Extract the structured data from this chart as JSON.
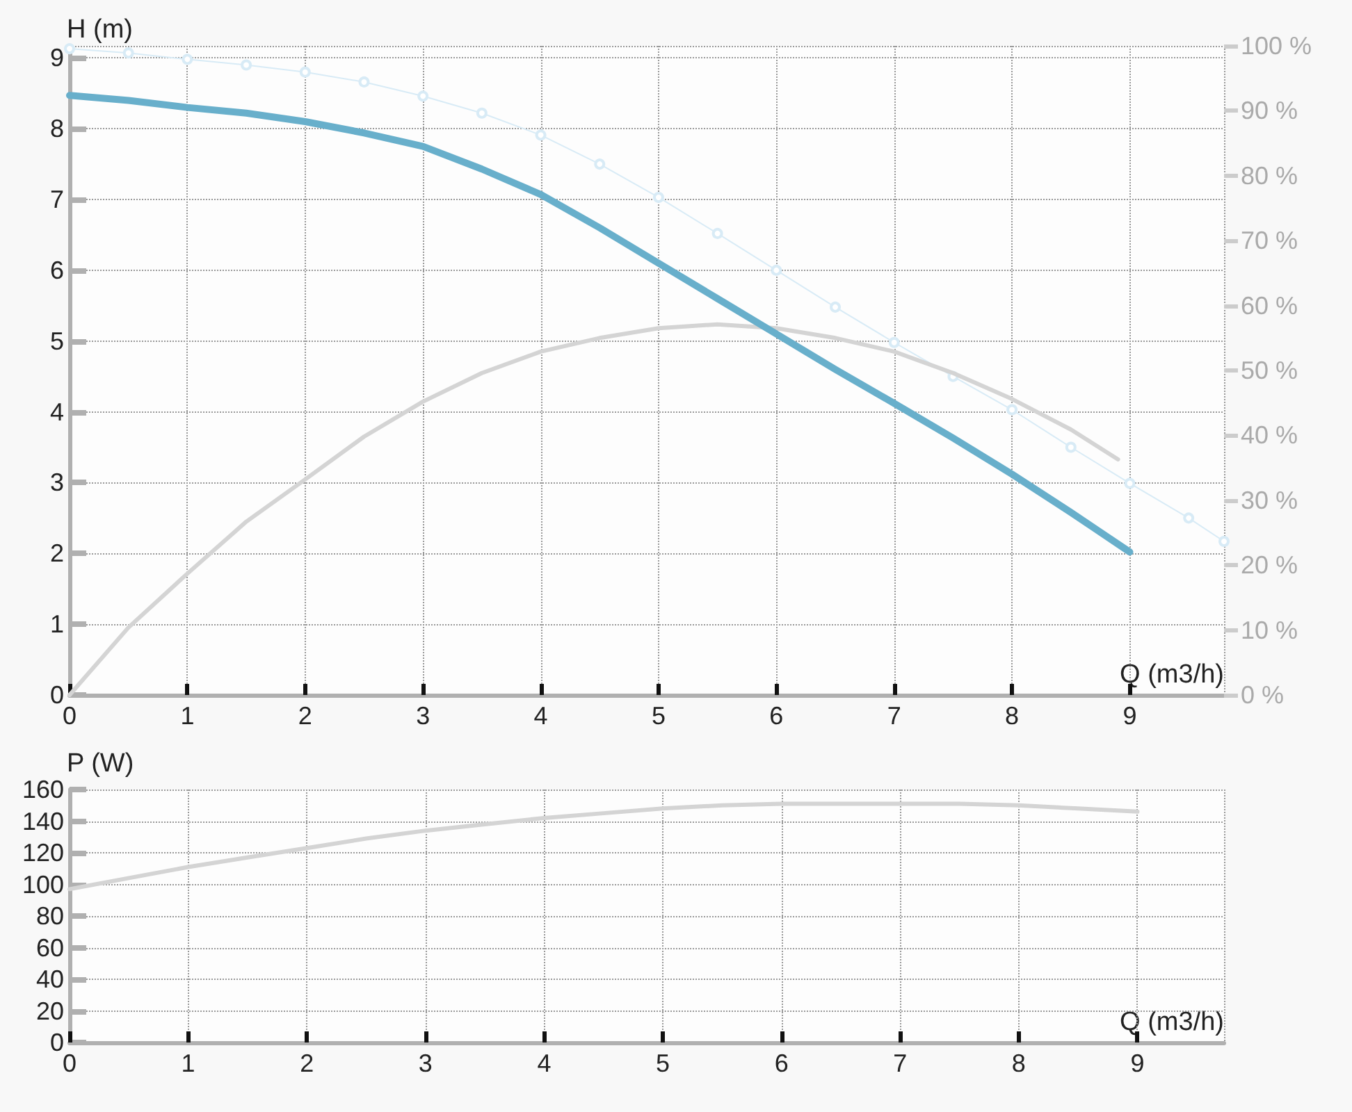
{
  "chart_data": [
    {
      "type": "line",
      "ylabel": "H (m)",
      "xlabel": "Q (m3/h)",
      "xlim": [
        0,
        9.8
      ],
      "xticks": [
        0,
        1,
        2,
        3,
        4,
        5,
        6,
        7,
        8,
        9
      ],
      "ylim": [
        0,
        9.17
      ],
      "yticks": [
        0,
        1,
        2,
        3,
        4,
        5,
        6,
        7,
        8,
        9
      ],
      "y2lim": [
        0,
        100
      ],
      "y2ticks": [
        {
          "value": 0,
          "label": "0 %"
        },
        {
          "value": 10,
          "label": "10 %"
        },
        {
          "value": 20,
          "label": "20 %"
        },
        {
          "value": 30,
          "label": "30 %"
        },
        {
          "value": 40,
          "label": "40 %"
        },
        {
          "value": 50,
          "label": "50 %"
        },
        {
          "value": 60,
          "label": "60 %"
        },
        {
          "value": 70,
          "label": "70 %"
        },
        {
          "value": 80,
          "label": "80 %"
        },
        {
          "value": 90,
          "label": "90 %"
        },
        {
          "value": 100,
          "label": "100 %"
        }
      ],
      "grid": true,
      "series": [
        {
          "color": "#d8ebf6",
          "marker": "circle",
          "x": [
            0,
            0.5,
            1,
            1.5,
            2,
            2.5,
            3,
            3.5,
            4,
            4.5,
            5,
            5.5,
            6,
            6.5,
            7,
            7.5,
            8,
            8.5,
            9,
            9.5,
            9.8
          ],
          "values": [
            9.13,
            9.07,
            8.98,
            8.9,
            8.8,
            8.66,
            8.46,
            8.22,
            7.91,
            7.5,
            7.03,
            6.52,
            6.0,
            5.48,
            4.98,
            4.5,
            4.03,
            3.5,
            2.99,
            2.5,
            2.17
          ]
        },
        {
          "color": "#d4d4d4",
          "axis": "y2",
          "x": [
            0,
            0.5,
            1,
            1.5,
            2,
            2.5,
            3,
            3.5,
            4,
            4.5,
            5,
            5.5,
            6,
            6.5,
            7,
            7.5,
            8,
            8.5,
            8.9
          ],
          "values": [
            0,
            10.4,
            18.7,
            26.7,
            33.2,
            39.8,
            45.2,
            49.6,
            52.9,
            55.0,
            56.5,
            57.1,
            56.5,
            55.0,
            52.9,
            49.6,
            45.6,
            40.9,
            36.3
          ]
        },
        {
          "color": "#68afcb",
          "x": [
            0,
            0.5,
            1,
            1.5,
            2,
            2.5,
            3,
            3.5,
            4,
            4.5,
            5,
            5.5,
            6,
            6.5,
            7,
            7.5,
            8,
            8.5,
            9
          ],
          "values": [
            8.47,
            8.4,
            8.3,
            8.22,
            8.1,
            7.94,
            7.75,
            7.43,
            7.07,
            6.6,
            6.1,
            5.6,
            5.1,
            4.6,
            4.12,
            3.63,
            3.12,
            2.58,
            2.02
          ]
        }
      ]
    },
    {
      "type": "line",
      "ylabel": "P (W)",
      "xlabel": "Q (m3/h)",
      "xlim": [
        0,
        9.73
      ],
      "xticks": [
        0,
        1,
        2,
        3,
        4,
        5,
        6,
        7,
        8,
        9
      ],
      "ylim": [
        0,
        160
      ],
      "yticks": [
        0,
        20,
        40,
        60,
        80,
        100,
        120,
        140,
        160
      ],
      "grid": true,
      "series": [
        {
          "color": "#d4d4d4",
          "x": [
            0,
            0.5,
            1,
            1.5,
            2,
            2.5,
            3,
            3.5,
            4,
            4.5,
            5,
            5.5,
            6,
            6.5,
            7,
            7.5,
            8,
            8.5,
            9
          ],
          "values": [
            97,
            104,
            111,
            117,
            123,
            129,
            134,
            138,
            142,
            145,
            148,
            150,
            151,
            151,
            151,
            151,
            150,
            148,
            146
          ]
        }
      ]
    }
  ]
}
